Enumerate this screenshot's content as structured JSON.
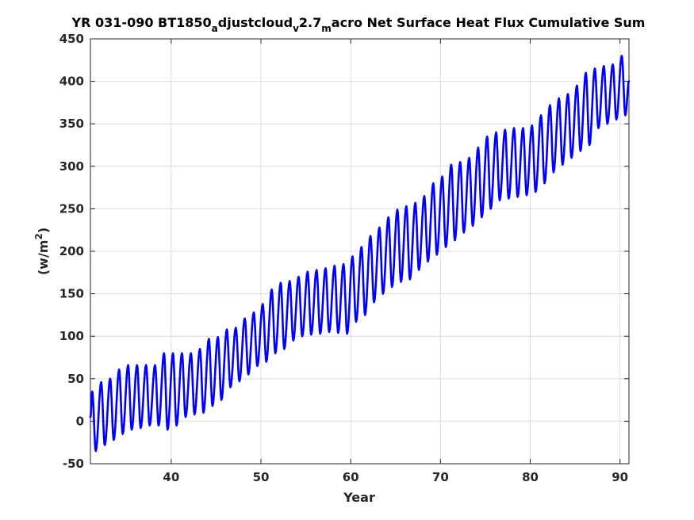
{
  "chart_data": {
    "type": "line",
    "title": {
      "parts": [
        {
          "text": "YR 031-090 BT1850",
          "shift": "none"
        },
        {
          "text": "a",
          "shift": "sub"
        },
        {
          "text": "djustcloud",
          "shift": "none"
        },
        {
          "text": "v",
          "shift": "sub"
        },
        {
          "text": "2.7",
          "shift": "none"
        },
        {
          "text": "m",
          "shift": "sub"
        },
        {
          "text": "acro Net Surface Heat Flux  Cumulative Sum",
          "shift": "none"
        }
      ]
    },
    "xlabel": "Year",
    "ylabel": {
      "base": "(w/m",
      "sup": "2",
      "end": ")"
    },
    "xlim": [
      31,
      91
    ],
    "ylim": [
      -50,
      450
    ],
    "xticks": [
      40,
      50,
      60,
      70,
      80,
      90
    ],
    "yticks": [
      -50,
      0,
      50,
      100,
      150,
      200,
      250,
      300,
      350,
      400,
      450
    ],
    "grid": true,
    "line_color": "#0000ff",
    "series": [
      {
        "sampling": "monthly, one annual cycle per year",
        "annual_max": [
          {
            "x": 31,
            "y": 35
          },
          {
            "x": 32,
            "y": 46
          },
          {
            "x": 33,
            "y": 50
          },
          {
            "x": 34,
            "y": 61
          },
          {
            "x": 35,
            "y": 66
          },
          {
            "x": 36,
            "y": 66
          },
          {
            "x": 37,
            "y": 66
          },
          {
            "x": 38,
            "y": 66
          },
          {
            "x": 39,
            "y": 80
          },
          {
            "x": 40,
            "y": 80
          },
          {
            "x": 41,
            "y": 80
          },
          {
            "x": 42,
            "y": 80
          },
          {
            "x": 43,
            "y": 85
          },
          {
            "x": 44,
            "y": 97
          },
          {
            "x": 45,
            "y": 99
          },
          {
            "x": 46,
            "y": 108
          },
          {
            "x": 47,
            "y": 110
          },
          {
            "x": 48,
            "y": 121
          },
          {
            "x": 49,
            "y": 128
          },
          {
            "x": 50,
            "y": 138
          },
          {
            "x": 51,
            "y": 155
          },
          {
            "x": 52,
            "y": 163
          },
          {
            "x": 53,
            "y": 165
          },
          {
            "x": 54,
            "y": 170
          },
          {
            "x": 55,
            "y": 176
          },
          {
            "x": 56,
            "y": 178
          },
          {
            "x": 57,
            "y": 180
          },
          {
            "x": 58,
            "y": 183
          },
          {
            "x": 59,
            "y": 185
          },
          {
            "x": 60,
            "y": 194
          },
          {
            "x": 61,
            "y": 205
          },
          {
            "x": 62,
            "y": 218
          },
          {
            "x": 63,
            "y": 228
          },
          {
            "x": 64,
            "y": 240
          },
          {
            "x": 65,
            "y": 249
          },
          {
            "x": 66,
            "y": 253
          },
          {
            "x": 67,
            "y": 257
          },
          {
            "x": 68,
            "y": 265
          },
          {
            "x": 69,
            "y": 280
          },
          {
            "x": 70,
            "y": 288
          },
          {
            "x": 71,
            "y": 302
          },
          {
            "x": 72,
            "y": 305
          },
          {
            "x": 73,
            "y": 310
          },
          {
            "x": 74,
            "y": 322
          },
          {
            "x": 75,
            "y": 335
          },
          {
            "x": 76,
            "y": 340
          },
          {
            "x": 77,
            "y": 343
          },
          {
            "x": 78,
            "y": 345
          },
          {
            "x": 79,
            "y": 345
          },
          {
            "x": 80,
            "y": 348
          },
          {
            "x": 81,
            "y": 360
          },
          {
            "x": 82,
            "y": 372
          },
          {
            "x": 83,
            "y": 380
          },
          {
            "x": 84,
            "y": 385
          },
          {
            "x": 85,
            "y": 395
          },
          {
            "x": 86,
            "y": 410
          },
          {
            "x": 87,
            "y": 415
          },
          {
            "x": 88,
            "y": 418
          },
          {
            "x": 89,
            "y": 420
          },
          {
            "x": 90,
            "y": 430
          }
        ],
        "annual_min": [
          {
            "x": 31,
            "y": -35
          },
          {
            "x": 32,
            "y": -28
          },
          {
            "x": 33,
            "y": -22
          },
          {
            "x": 34,
            "y": -15
          },
          {
            "x": 35,
            "y": -10
          },
          {
            "x": 36,
            "y": -8
          },
          {
            "x": 37,
            "y": -5
          },
          {
            "x": 38,
            "y": -5
          },
          {
            "x": 39,
            "y": -10
          },
          {
            "x": 40,
            "y": -5
          },
          {
            "x": 41,
            "y": 5
          },
          {
            "x": 42,
            "y": 8
          },
          {
            "x": 43,
            "y": 10
          },
          {
            "x": 44,
            "y": 18
          },
          {
            "x": 45,
            "y": 25
          },
          {
            "x": 46,
            "y": 40
          },
          {
            "x": 47,
            "y": 47
          },
          {
            "x": 48,
            "y": 55
          },
          {
            "x": 49,
            "y": 65
          },
          {
            "x": 50,
            "y": 70
          },
          {
            "x": 51,
            "y": 80
          },
          {
            "x": 52,
            "y": 85
          },
          {
            "x": 53,
            "y": 95
          },
          {
            "x": 54,
            "y": 100
          },
          {
            "x": 55,
            "y": 102
          },
          {
            "x": 56,
            "y": 103
          },
          {
            "x": 57,
            "y": 105
          },
          {
            "x": 58,
            "y": 104
          },
          {
            "x": 59,
            "y": 103
          },
          {
            "x": 60,
            "y": 117
          },
          {
            "x": 61,
            "y": 125
          },
          {
            "x": 62,
            "y": 140
          },
          {
            "x": 63,
            "y": 150
          },
          {
            "x": 64,
            "y": 158
          },
          {
            "x": 65,
            "y": 164
          },
          {
            "x": 66,
            "y": 167
          },
          {
            "x": 67,
            "y": 178
          },
          {
            "x": 68,
            "y": 188
          },
          {
            "x": 69,
            "y": 196
          },
          {
            "x": 70,
            "y": 205
          },
          {
            "x": 71,
            "y": 213
          },
          {
            "x": 72,
            "y": 222
          },
          {
            "x": 73,
            "y": 230
          },
          {
            "x": 74,
            "y": 240
          },
          {
            "x": 75,
            "y": 250
          },
          {
            "x": 76,
            "y": 260
          },
          {
            "x": 77,
            "y": 262
          },
          {
            "x": 78,
            "y": 264
          },
          {
            "x": 79,
            "y": 266
          },
          {
            "x": 80,
            "y": 270
          },
          {
            "x": 81,
            "y": 280
          },
          {
            "x": 82,
            "y": 293
          },
          {
            "x": 83,
            "y": 302
          },
          {
            "x": 84,
            "y": 310
          },
          {
            "x": 85,
            "y": 318
          },
          {
            "x": 86,
            "y": 325
          },
          {
            "x": 87,
            "y": 345
          },
          {
            "x": 88,
            "y": 350
          },
          {
            "x": 89,
            "y": 355
          },
          {
            "x": 90,
            "y": 360
          }
        ],
        "end_value": {
          "x": 91,
          "y": 400
        }
      }
    ]
  }
}
